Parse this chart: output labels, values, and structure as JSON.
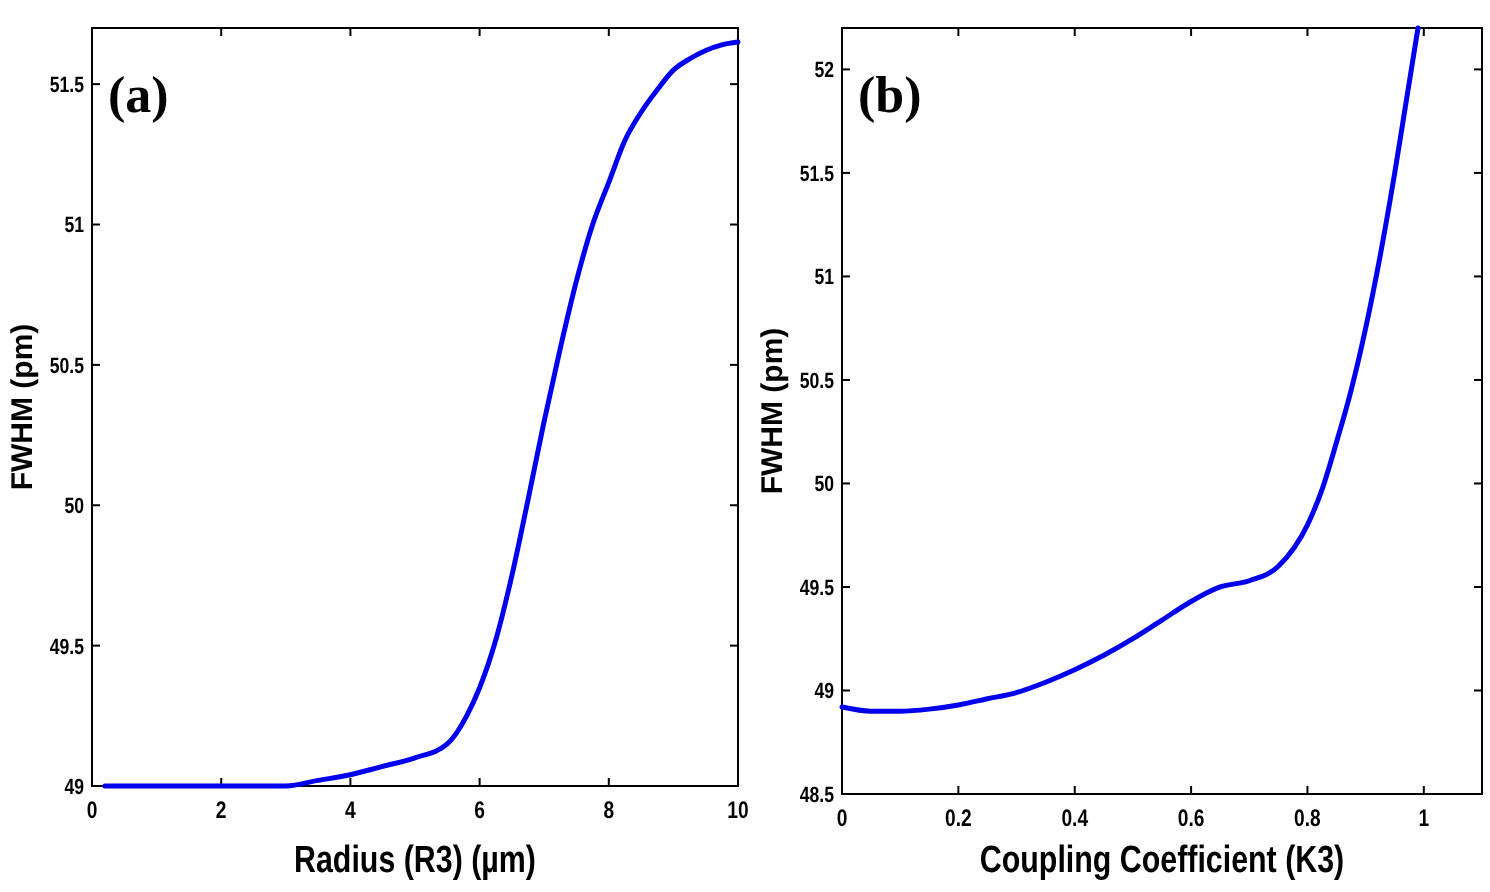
{
  "chart_data": [
    {
      "type": "line",
      "xlabel": "Radius (R3) (µm)",
      "ylabel": "FWHM  (pm)",
      "annotations": [
        "(a)"
      ],
      "series": [
        {
          "color": "#0000ee",
          "x": [
            0.2,
            1,
            2,
            3,
            3.5,
            4,
            4.5,
            5,
            5.5,
            5.8,
            6,
            6.25,
            6.5,
            6.75,
            7,
            7.25,
            7.5,
            7.75,
            8,
            8.25,
            8.5,
            8.75,
            9,
            9.25,
            9.5,
            9.75,
            10
          ],
          "values": [
            49,
            49,
            49,
            49,
            49.02,
            49.04,
            49.07,
            49.1,
            49.15,
            49.25,
            49.35,
            49.52,
            49.75,
            50.02,
            50.3,
            50.56,
            50.8,
            51,
            51.15,
            51.3,
            51.4,
            51.48,
            51.55,
            51.59,
            51.62,
            51.64,
            51.65
          ]
        }
      ],
      "xlim": [
        0,
        10
      ],
      "ylim": [
        49,
        51.7
      ],
      "xticks": [
        0,
        2,
        4,
        6,
        8,
        10
      ],
      "yticks": [
        49,
        49.5,
        50,
        50.5,
        51,
        51.5
      ],
      "line_style": "solid"
    },
    {
      "type": "line",
      "xlabel": "Coupling Coefficient (K3)",
      "ylabel": "FWHM  (pm)",
      "annotations": [
        "(b)"
      ],
      "series": [
        {
          "color": "#0000ee",
          "x": [
            0,
            0.05,
            0.1,
            0.15,
            0.2,
            0.25,
            0.3,
            0.35,
            0.4,
            0.45,
            0.5,
            0.55,
            0.6,
            0.65,
            0.7,
            0.75,
            0.8,
            0.825,
            0.85,
            0.875,
            0.9,
            0.925,
            0.95,
            0.97,
            0.99
          ],
          "values": [
            48.92,
            48.9,
            48.9,
            48.91,
            48.93,
            48.96,
            48.99,
            49.04,
            49.1,
            49.17,
            49.25,
            49.34,
            49.43,
            49.5,
            49.53,
            49.6,
            49.8,
            49.97,
            50.2,
            50.45,
            50.75,
            51.1,
            51.5,
            51.85,
            52.2
          ]
        }
      ],
      "xlim": [
        0,
        1.1
      ],
      "ylim": [
        48.5,
        52.2
      ],
      "xticks": [
        0,
        0.2,
        0.4,
        0.6,
        0.8,
        1
      ],
      "yticks": [
        48.5,
        49,
        49.5,
        50,
        50.5,
        51,
        51.5,
        52
      ],
      "line_style": "solid"
    }
  ]
}
